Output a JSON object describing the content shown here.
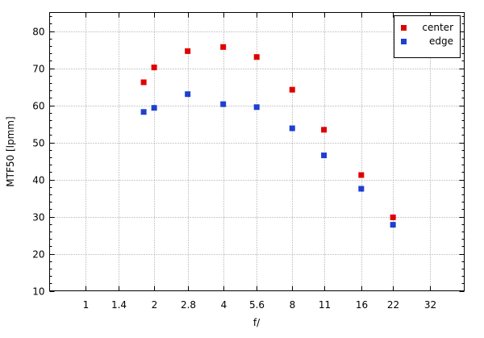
{
  "chart_data": {
    "type": "scatter",
    "xlabel": "f/",
    "ylabel": "MTF50 [lpmm]",
    "x_scale": "log",
    "x_ticks": [
      1,
      1.4,
      2,
      2.8,
      4,
      5.6,
      8,
      11,
      16,
      22,
      32
    ],
    "x_tick_labels": [
      "1",
      "1.4",
      "2",
      "2.8",
      "4",
      "5.6",
      "8",
      "11",
      "16",
      "22",
      "32"
    ],
    "xlim": [
      0.7,
      45
    ],
    "ylim": [
      10,
      85
    ],
    "y_ticks": [
      10,
      20,
      30,
      40,
      50,
      60,
      70,
      80
    ],
    "grid": true,
    "legend": "top-right",
    "series": [
      {
        "name": "center",
        "color": "#e00000",
        "x": [
          1.8,
          2,
          2.8,
          4,
          5.6,
          8,
          11,
          16,
          22
        ],
        "y": [
          66.2,
          70.2,
          74.6,
          75.7,
          73.0,
          64.2,
          53.4,
          41.2,
          29.8
        ]
      },
      {
        "name": "edge",
        "color": "#1f3fd0",
        "x": [
          1.8,
          2,
          2.8,
          4,
          5.6,
          8,
          11,
          16,
          22
        ],
        "y": [
          58.2,
          59.3,
          63.0,
          60.3,
          59.5,
          53.8,
          46.5,
          37.5,
          27.8
        ]
      }
    ]
  }
}
